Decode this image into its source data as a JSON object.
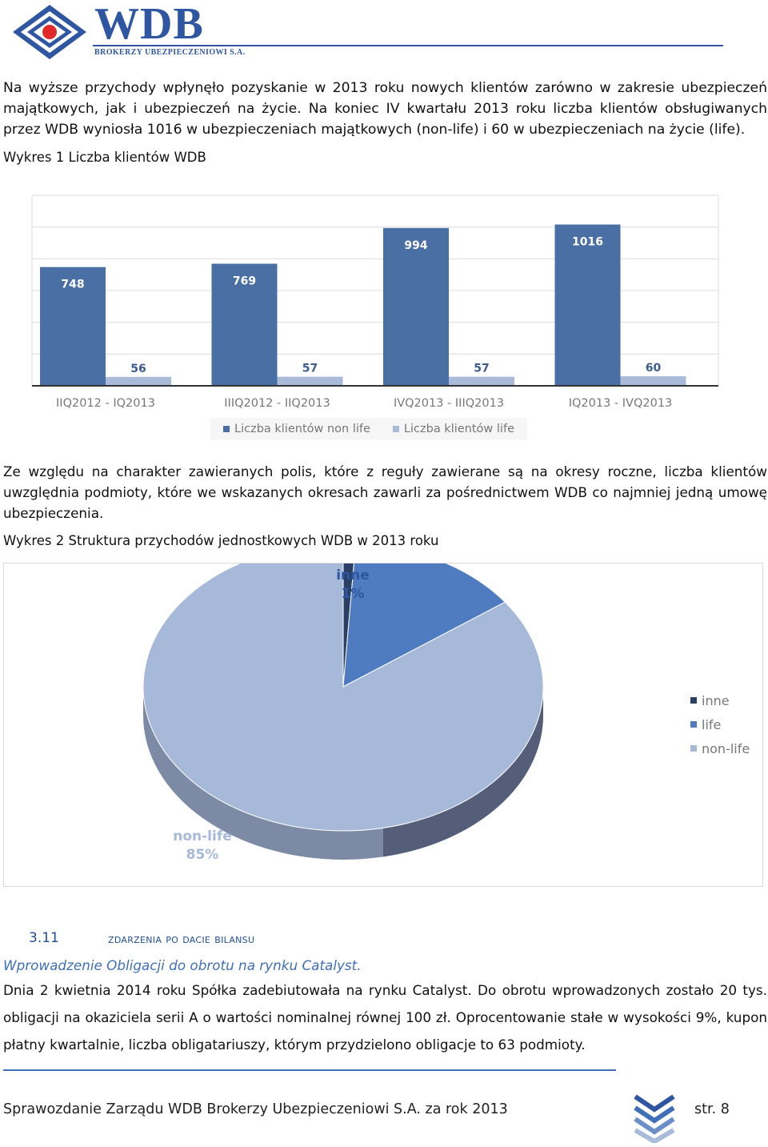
{
  "header": {
    "logo_name": "WDB",
    "logo_sub": "BROKERZY UBEZPIECZENIOWI S.A."
  },
  "intro_paragraph": "Na wyższe przychody wpłynęło pozyskanie w 2013 roku nowych klientów zarówno w zakresie ubezpieczeń majątkowych, jak i ubezpieczeń na życie. Na koniec IV kwartału 2013 roku liczba klientów obsługiwanych przez WDB wyniosła 1016 w ubezpieczeniach majątkowych (non-life) i 60 w ubezpieczeniach na życie (life).",
  "chart1_caption": "Wykres 1 Liczba klientów WDB",
  "middle_paragraph": "Ze względu na charakter zawieranych polis, które z reguły zawierane są na okresy roczne, liczba klientów uwzględnia podmioty, które we wskazanych okresach zawarli za pośrednictwem WDB co najmniej jedną umowę ubezpieczenia.",
  "chart2_caption": "Wykres 2 Struktura przychodów jednostkowych WDB w 2013 roku",
  "section": {
    "number": "3.11",
    "title": "Zdarzenia po dacie bilansu"
  },
  "subsection_title": "Wprowadzenie Obligacji do obrotu na rynku Catalyst.",
  "final_paragraph": "Dnia 2 kwietnia 2014 roku Spółka zadebiutowała na rynku Catalyst. Do obrotu wprowadzonych zostało 20 tys. obligacji na okaziciela serii A o wartości nominalnej równej 100 zł. Oprocentowanie stałe w wysokości 9%, kupon płatny kwartalnie, liczba obligatariuszy, którym przydzielono obligacje to 63 podmioty.",
  "footer": {
    "text": "Sprawozdanie Zarządu WDB Brokerzy Ubezpieczeniowi S.A. za rok 2013",
    "page": "str. 8"
  },
  "colors": {
    "brand_blue": "#2f56a0",
    "nonlife_bar": "#4a6fa5",
    "life_bar": "#a9bbd8",
    "pie_nonlife": "#a7b9d9",
    "pie_life": "#4f7cc1",
    "pie_inne": "#2a3f66"
  },
  "chart_data": [
    {
      "type": "bar",
      "categories": [
        "IIQ2012 - IQ2013",
        "IIIQ2012 - IIQ2013",
        "IVQ2013 - IIIQ2013",
        "IQ2013 - IVQ2013"
      ],
      "series": [
        {
          "name": "Liczba klientów non life",
          "values": [
            748,
            769,
            994,
            1016
          ]
        },
        {
          "name": "Liczba klientów life",
          "values": [
            56,
            57,
            57,
            60
          ]
        }
      ],
      "ylim": [
        0,
        1200
      ],
      "grid": true,
      "legend": "bottom"
    },
    {
      "type": "pie",
      "labels": [
        "inne",
        "life",
        "non-life"
      ],
      "values": [
        1,
        14,
        85
      ],
      "value_labels": [
        "1%",
        "14%",
        "85%"
      ],
      "legend": "right"
    }
  ]
}
